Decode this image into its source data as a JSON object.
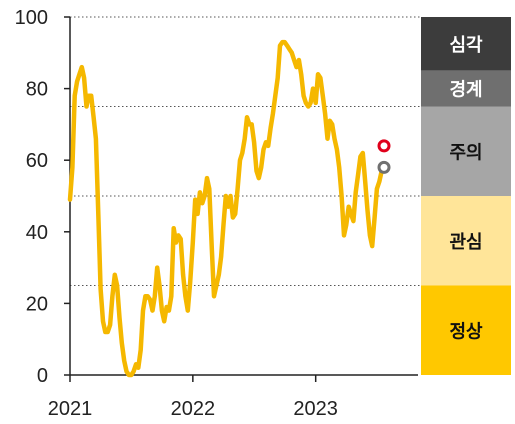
{
  "colors": {
    "line": "#F5B800",
    "axis": "#222222",
    "gridline": "#555555",
    "current_marker": "#E0001B",
    "previous_marker": "#707070"
  },
  "chart_data": {
    "type": "line",
    "title": "",
    "xlabel": "",
    "ylabel": "",
    "ylim": [
      0,
      100
    ],
    "xlim": [
      "2021-01",
      "2023-11"
    ],
    "yticks": [
      "0",
      "20",
      "40",
      "60",
      "80",
      "100"
    ],
    "xticks": [
      "2021",
      "2022",
      "2023"
    ],
    "gridlines_at": [
      25,
      50,
      75,
      100
    ],
    "legend": "none",
    "grid": "dotted horizontal at band thresholds",
    "series": [
      {
        "points": [
          [
            "2021-01-01",
            49
          ],
          [
            "2021-01-08",
            58
          ],
          [
            "2021-01-15",
            78
          ],
          [
            "2021-01-22",
            82
          ],
          [
            "2021-01-29",
            84
          ],
          [
            "2021-02-05",
            86
          ],
          [
            "2021-02-12",
            83
          ],
          [
            "2021-02-19",
            75
          ],
          [
            "2021-02-26",
            78
          ],
          [
            "2021-03-05",
            78
          ],
          [
            "2021-03-12",
            72
          ],
          [
            "2021-03-19",
            66
          ],
          [
            "2021-03-26",
            45
          ],
          [
            "2021-04-02",
            24
          ],
          [
            "2021-04-09",
            15
          ],
          [
            "2021-04-16",
            12
          ],
          [
            "2021-04-23",
            12
          ],
          [
            "2021-04-30",
            14
          ],
          [
            "2021-05-07",
            22
          ],
          [
            "2021-05-14",
            28
          ],
          [
            "2021-05-21",
            25
          ],
          [
            "2021-05-28",
            16
          ],
          [
            "2021-06-04",
            9
          ],
          [
            "2021-06-11",
            4
          ],
          [
            "2021-06-18",
            1
          ],
          [
            "2021-06-25",
            0
          ],
          [
            "2021-07-02",
            0
          ],
          [
            "2021-07-09",
            1
          ],
          [
            "2021-07-16",
            3
          ],
          [
            "2021-07-23",
            2
          ],
          [
            "2021-07-30",
            7
          ],
          [
            "2021-08-06",
            18
          ],
          [
            "2021-08-13",
            22
          ],
          [
            "2021-08-20",
            22
          ],
          [
            "2021-08-27",
            21
          ],
          [
            "2021-09-03",
            18
          ],
          [
            "2021-09-10",
            22
          ],
          [
            "2021-09-17",
            30
          ],
          [
            "2021-09-24",
            25
          ],
          [
            "2021-10-01",
            18
          ],
          [
            "2021-10-08",
            15
          ],
          [
            "2021-10-15",
            19
          ],
          [
            "2021-10-22",
            18
          ],
          [
            "2021-10-29",
            22
          ],
          [
            "2021-11-05",
            41
          ],
          [
            "2021-11-12",
            37
          ],
          [
            "2021-11-19",
            39
          ],
          [
            "2021-11-26",
            38
          ],
          [
            "2021-12-03",
            28
          ],
          [
            "2021-12-10",
            22
          ],
          [
            "2021-12-17",
            18
          ],
          [
            "2021-12-24",
            26
          ],
          [
            "2022-01-01",
            37
          ],
          [
            "2022-01-08",
            49
          ],
          [
            "2022-01-15",
            45
          ],
          [
            "2022-01-22",
            51
          ],
          [
            "2022-01-29",
            48
          ],
          [
            "2022-02-05",
            50
          ],
          [
            "2022-02-12",
            55
          ],
          [
            "2022-02-19",
            52
          ],
          [
            "2022-02-26",
            36
          ],
          [
            "2022-03-05",
            22
          ],
          [
            "2022-03-12",
            25
          ],
          [
            "2022-03-19",
            28
          ],
          [
            "2022-03-26",
            33
          ],
          [
            "2022-04-02",
            42
          ],
          [
            "2022-04-09",
            50
          ],
          [
            "2022-04-16",
            47
          ],
          [
            "2022-04-23",
            50
          ],
          [
            "2022-04-30",
            44
          ],
          [
            "2022-05-07",
            45
          ],
          [
            "2022-05-14",
            52
          ],
          [
            "2022-05-21",
            60
          ],
          [
            "2022-05-28",
            62
          ],
          [
            "2022-06-04",
            66
          ],
          [
            "2022-06-11",
            72
          ],
          [
            "2022-06-18",
            70
          ],
          [
            "2022-06-25",
            70
          ],
          [
            "2022-07-02",
            65
          ],
          [
            "2022-07-09",
            57
          ],
          [
            "2022-07-16",
            55
          ],
          [
            "2022-07-23",
            58
          ],
          [
            "2022-07-30",
            63
          ],
          [
            "2022-08-06",
            65
          ],
          [
            "2022-08-13",
            64
          ],
          [
            "2022-08-20",
            69
          ],
          [
            "2022-08-27",
            73
          ],
          [
            "2022-09-03",
            78
          ],
          [
            "2022-09-10",
            83
          ],
          [
            "2022-09-17",
            92
          ],
          [
            "2022-09-24",
            93
          ],
          [
            "2022-10-01",
            93
          ],
          [
            "2022-10-08",
            92
          ],
          [
            "2022-10-15",
            91
          ],
          [
            "2022-10-22",
            90
          ],
          [
            "2022-10-29",
            88
          ],
          [
            "2022-11-05",
            86
          ],
          [
            "2022-11-12",
            88
          ],
          [
            "2022-11-19",
            84
          ],
          [
            "2022-11-26",
            78
          ],
          [
            "2022-12-03",
            76
          ],
          [
            "2022-12-10",
            75
          ],
          [
            "2022-12-17",
            76
          ],
          [
            "2022-12-24",
            80
          ],
          [
            "2023-01-01",
            76
          ],
          [
            "2023-01-08",
            84
          ],
          [
            "2023-01-15",
            83
          ],
          [
            "2023-01-22",
            78
          ],
          [
            "2023-01-29",
            73
          ],
          [
            "2023-02-05",
            66
          ],
          [
            "2023-02-12",
            71
          ],
          [
            "2023-02-19",
            70
          ],
          [
            "2023-02-26",
            66
          ],
          [
            "2023-03-05",
            63
          ],
          [
            "2023-03-12",
            58
          ],
          [
            "2023-03-19",
            50
          ],
          [
            "2023-03-26",
            39
          ],
          [
            "2023-04-02",
            42
          ],
          [
            "2023-04-09",
            47
          ],
          [
            "2023-04-16",
            45
          ],
          [
            "2023-04-23",
            43
          ],
          [
            "2023-04-30",
            51
          ],
          [
            "2023-05-07",
            56
          ],
          [
            "2023-05-14",
            61
          ],
          [
            "2023-05-21",
            62
          ],
          [
            "2023-05-28",
            54
          ],
          [
            "2023-06-04",
            46
          ],
          [
            "2023-06-11",
            39
          ],
          [
            "2023-06-18",
            36
          ],
          [
            "2023-06-25",
            44
          ],
          [
            "2023-07-02",
            52
          ],
          [
            "2023-07-09",
            54
          ],
          [
            "2023-07-16",
            57
          ]
        ]
      }
    ],
    "markers": [
      {
        "kind": "current",
        "x": "2023-07-23",
        "y": 64,
        "style": "hollow-red"
      },
      {
        "kind": "previous",
        "x": "2023-07-23",
        "y": 58,
        "style": "hollow-gray"
      }
    ],
    "bands": [
      {
        "label": "심각",
        "from": 85,
        "to": 100,
        "color": "#3C3C3C",
        "text_color": "#FFFFFF"
      },
      {
        "label": "경계",
        "from": 75,
        "to": 85,
        "color": "#6F6F6F",
        "text_color": "#FFFFFF"
      },
      {
        "label": "주의",
        "from": 50,
        "to": 75,
        "color": "#A6A6A6",
        "text_color": "#111111"
      },
      {
        "label": "관심",
        "from": 25,
        "to": 50,
        "color": "#FFE599",
        "text_color": "#111111"
      },
      {
        "label": "정상",
        "from": 0,
        "to": 25,
        "color": "#FFC800",
        "text_color": "#111111"
      }
    ]
  }
}
